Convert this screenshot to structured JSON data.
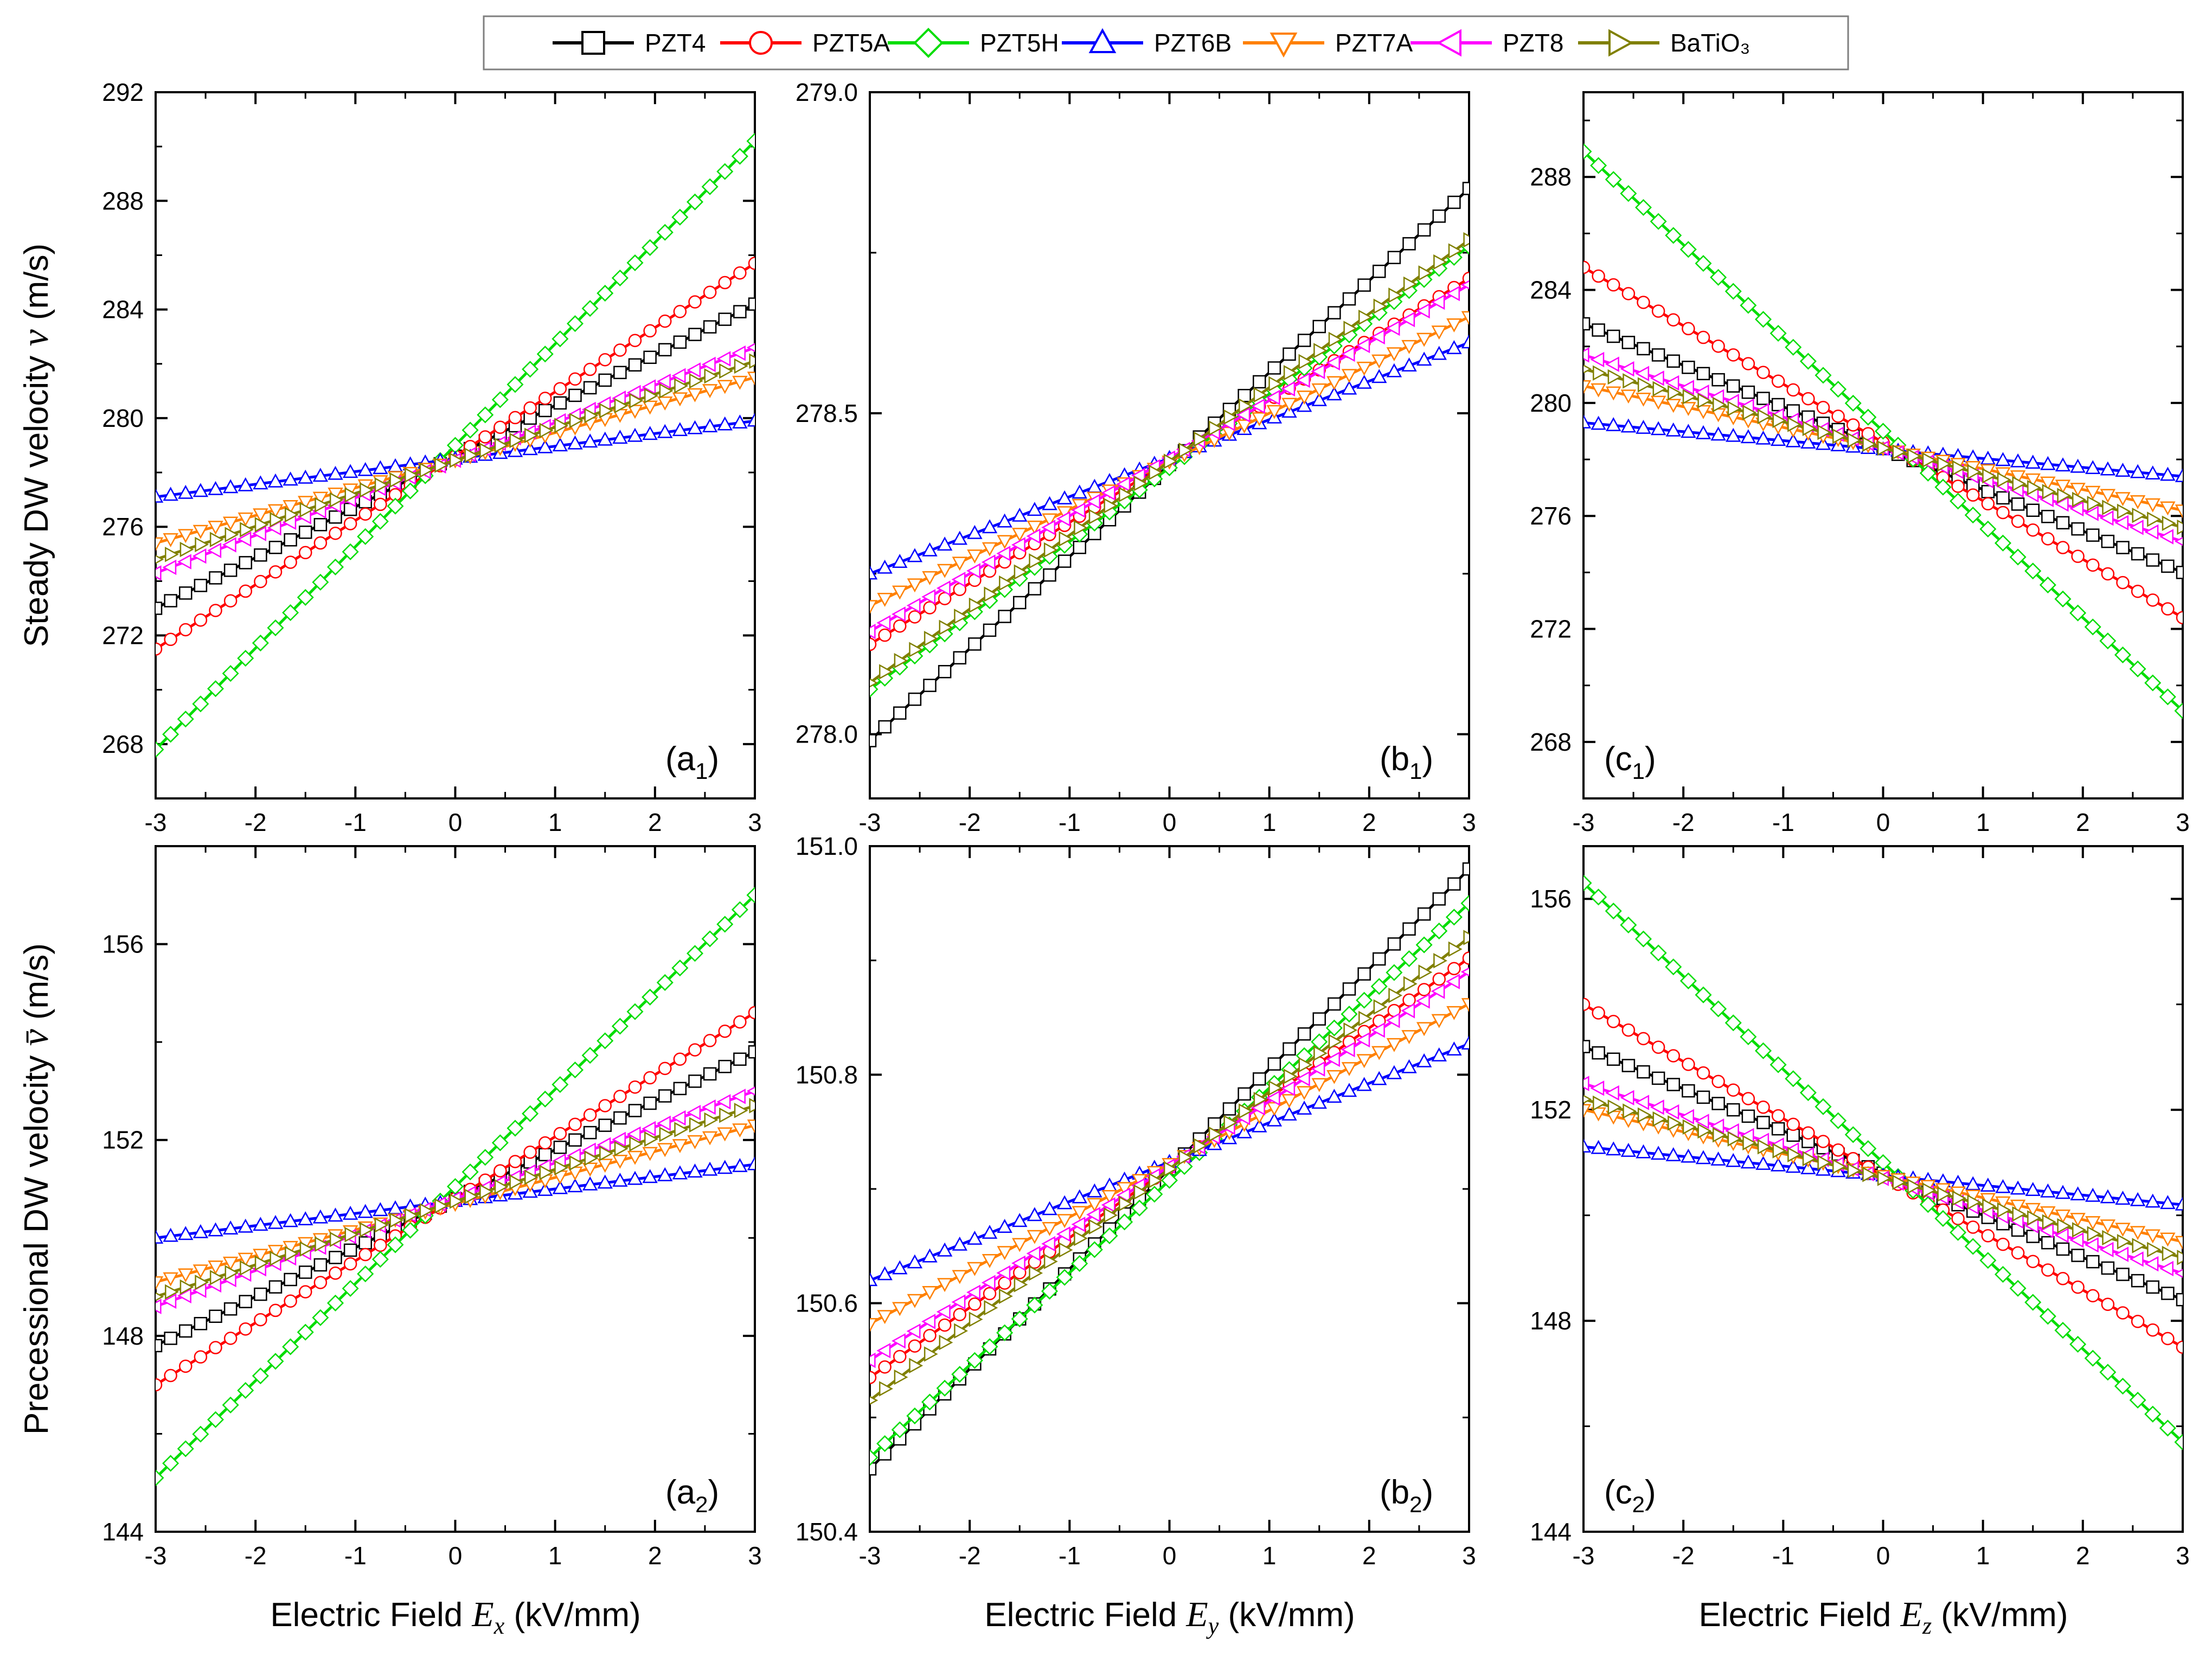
{
  "legend": [
    {
      "name": "PZT4",
      "color": "#000000",
      "marker": "square"
    },
    {
      "name": "PZT5A",
      "color": "#ff0000",
      "marker": "circle"
    },
    {
      "name": "PZT5H",
      "color": "#00dd00",
      "marker": "diamond"
    },
    {
      "name": "PZT6B",
      "color": "#0000ff",
      "marker": "triangle-up"
    },
    {
      "name": "PZT7A",
      "color": "#ff8000",
      "marker": "triangle-down"
    },
    {
      "name": "PZT8",
      "color": "#ff00ff",
      "marker": "triangle-left"
    },
    {
      "name": "BaTiO₃",
      "color": "#808000",
      "marker": "triangle-right"
    }
  ],
  "row_titles": {
    "top": {
      "text": "Steady DW velocity",
      "symbol": "v",
      "unit": "(m/s)"
    },
    "bottom": {
      "text": "Precessional DW velocity",
      "symbol": "v̄",
      "unit": "(m/s)"
    }
  },
  "x_titles": [
    {
      "pre": "Electric Field ",
      "symbol": "E",
      "sub": "x",
      "unit": " (kV/mm)"
    },
    {
      "pre": "Electric Field ",
      "symbol": "E",
      "sub": "y",
      "unit": " (kV/mm)"
    },
    {
      "pre": "Electric Field ",
      "symbol": "E",
      "sub": "z",
      "unit": " (kV/mm)"
    }
  ],
  "chart_data": [
    {
      "type": "line",
      "panel": "(a1)",
      "label": "a",
      "label_sub": "1",
      "label_pos": "bottom-right",
      "xlim": [
        -3,
        3
      ],
      "ylim": [
        266,
        292
      ],
      "xticks": [
        -3,
        -2,
        -1,
        0,
        1,
        2,
        3
      ],
      "yticks": [
        "268",
        "272",
        "276",
        "280",
        "284",
        "288",
        "292"
      ],
      "series": [
        {
          "name": "PZT4",
          "x": [
            -3,
            3
          ],
          "y": [
            273.0,
            284.2
          ]
        },
        {
          "name": "PZT5A",
          "x": [
            -3,
            3
          ],
          "y": [
            271.5,
            285.7
          ]
        },
        {
          "name": "PZT5H",
          "x": [
            -3,
            3
          ],
          "y": [
            267.8,
            290.2
          ]
        },
        {
          "name": "PZT6B",
          "x": [
            -3,
            3
          ],
          "y": [
            277.1,
            279.9
          ]
        },
        {
          "name": "PZT7A",
          "x": [
            -3,
            3
          ],
          "y": [
            275.4,
            281.5
          ]
        },
        {
          "name": "PZT8",
          "x": [
            -3,
            3
          ],
          "y": [
            274.3,
            282.6
          ]
        },
        {
          "name": "BaTiO₃",
          "x": [
            -3,
            3
          ],
          "y": [
            274.8,
            282.1
          ]
        }
      ]
    },
    {
      "type": "line",
      "panel": "(b1)",
      "label": "b",
      "label_sub": "1",
      "label_pos": "bottom-right",
      "xlim": [
        -3,
        3
      ],
      "ylim": [
        277.9,
        279.0
      ],
      "xticks": [
        -3,
        -2,
        -1,
        0,
        1,
        2,
        3
      ],
      "yticks": [
        "278.0",
        "278.5",
        "279.0"
      ],
      "series": [
        {
          "name": "PZT4",
          "x": [
            -3,
            3
          ],
          "y": [
            277.99,
            278.85
          ]
        },
        {
          "name": "PZT5A",
          "x": [
            -3,
            3
          ],
          "y": [
            278.14,
            278.71
          ]
        },
        {
          "name": "PZT5H",
          "x": [
            -3,
            3
          ],
          "y": [
            278.07,
            278.76
          ]
        },
        {
          "name": "PZT6B",
          "x": [
            -3,
            3
          ],
          "y": [
            278.25,
            278.61
          ]
        },
        {
          "name": "PZT7A",
          "x": [
            -3,
            3
          ],
          "y": [
            278.2,
            278.65
          ]
        },
        {
          "name": "PZT8",
          "x": [
            -3,
            3
          ],
          "y": [
            278.16,
            278.7
          ]
        },
        {
          "name": "BaTiO₃",
          "x": [
            -3,
            3
          ],
          "y": [
            278.08,
            278.77
          ]
        }
      ]
    },
    {
      "type": "line",
      "panel": "(c1)",
      "label": "c",
      "label_sub": "1",
      "label_pos": "bottom-left",
      "xlim": [
        -3,
        3
      ],
      "ylim": [
        266,
        291
      ],
      "xticks": [
        -3,
        -2,
        -1,
        0,
        1,
        2,
        3
      ],
      "yticks": [
        "268",
        "272",
        "276",
        "280",
        "284",
        "288"
      ],
      "series": [
        {
          "name": "PZT4",
          "x": [
            -3,
            3
          ],
          "y": [
            282.8,
            274.0
          ]
        },
        {
          "name": "PZT5A",
          "x": [
            -3,
            3
          ],
          "y": [
            284.8,
            272.4
          ]
        },
        {
          "name": "PZT5H",
          "x": [
            -3,
            3
          ],
          "y": [
            288.9,
            269.1
          ]
        },
        {
          "name": "PZT6B",
          "x": [
            -3,
            3
          ],
          "y": [
            279.3,
            277.4
          ]
        },
        {
          "name": "PZT7A",
          "x": [
            -3,
            3
          ],
          "y": [
            280.6,
            276.2
          ]
        },
        {
          "name": "PZT8",
          "x": [
            -3,
            3
          ],
          "y": [
            281.7,
            275.1
          ]
        },
        {
          "name": "BaTiO₃",
          "x": [
            -3,
            3
          ],
          "y": [
            281.2,
            275.6
          ]
        }
      ]
    },
    {
      "type": "line",
      "panel": "(a2)",
      "label": "a",
      "label_sub": "2",
      "label_pos": "bottom-right",
      "xlim": [
        -3,
        3
      ],
      "ylim": [
        144,
        158
      ],
      "xticks": [
        -3,
        -2,
        -1,
        0,
        1,
        2,
        3
      ],
      "yticks": [
        "144",
        "148",
        "152",
        "156"
      ],
      "series": [
        {
          "name": "PZT4",
          "x": [
            -3,
            3
          ],
          "y": [
            147.8,
            153.8
          ]
        },
        {
          "name": "PZT5A",
          "x": [
            -3,
            3
          ],
          "y": [
            147.0,
            154.6
          ]
        },
        {
          "name": "PZT5H",
          "x": [
            -3,
            3
          ],
          "y": [
            145.1,
            157.0
          ]
        },
        {
          "name": "PZT6B",
          "x": [
            -3,
            3
          ],
          "y": [
            150.0,
            151.5
          ]
        },
        {
          "name": "PZT7A",
          "x": [
            -3,
            3
          ],
          "y": [
            149.1,
            152.3
          ]
        },
        {
          "name": "PZT8",
          "x": [
            -3,
            3
          ],
          "y": [
            148.6,
            153.0
          ]
        },
        {
          "name": "BaTiO₃",
          "x": [
            -3,
            3
          ],
          "y": [
            148.8,
            152.7
          ]
        }
      ]
    },
    {
      "type": "line",
      "panel": "(b2)",
      "label": "b",
      "label_sub": "2",
      "label_pos": "bottom-right",
      "xlim": [
        -3,
        3
      ],
      "ylim": [
        150.4,
        151.0
      ],
      "xticks": [
        -3,
        -2,
        -1,
        0,
        1,
        2,
        3
      ],
      "yticks": [
        "150.4",
        "150.6",
        "150.8",
        "151.0"
      ],
      "series": [
        {
          "name": "PZT4",
          "x": [
            -3,
            3
          ],
          "y": [
            150.455,
            150.98
          ]
        },
        {
          "name": "PZT5A",
          "x": [
            -3,
            3
          ],
          "y": [
            150.535,
            150.902
          ]
        },
        {
          "name": "PZT5H",
          "x": [
            -3,
            3
          ],
          "y": [
            150.465,
            150.95
          ]
        },
        {
          "name": "PZT6B",
          "x": [
            -3,
            3
          ],
          "y": [
            150.62,
            150.827
          ]
        },
        {
          "name": "PZT7A",
          "x": [
            -3,
            3
          ],
          "y": [
            150.582,
            150.862
          ]
        },
        {
          "name": "PZT8",
          "x": [
            -3,
            3
          ],
          "y": [
            150.55,
            150.89
          ]
        },
        {
          "name": "BaTiO₃",
          "x": [
            -3,
            3
          ],
          "y": [
            150.515,
            150.92
          ]
        }
      ]
    },
    {
      "type": "line",
      "panel": "(c2)",
      "label": "c",
      "label_sub": "2",
      "label_pos": "bottom-left",
      "xlim": [
        -3,
        3
      ],
      "ylim": [
        144,
        157
      ],
      "xticks": [
        -3,
        -2,
        -1,
        0,
        1,
        2,
        3
      ],
      "yticks": [
        "144",
        "148",
        "152",
        "156"
      ],
      "series": [
        {
          "name": "PZT4",
          "x": [
            -3,
            3
          ],
          "y": [
            153.2,
            148.4
          ]
        },
        {
          "name": "PZT5A",
          "x": [
            -3,
            3
          ],
          "y": [
            154.0,
            147.5
          ]
        },
        {
          "name": "PZT5H",
          "x": [
            -3,
            3
          ],
          "y": [
            156.3,
            145.7
          ]
        },
        {
          "name": "PZT6B",
          "x": [
            -3,
            3
          ],
          "y": [
            151.3,
            150.2
          ]
        },
        {
          "name": "PZT7A",
          "x": [
            -3,
            3
          ],
          "y": [
            152.0,
            149.5
          ]
        },
        {
          "name": "PZT8",
          "x": [
            -3,
            3
          ],
          "y": [
            152.5,
            148.9
          ]
        },
        {
          "name": "BaTiO₃",
          "x": [
            -3,
            3
          ],
          "y": [
            152.2,
            149.2
          ]
        }
      ]
    }
  ]
}
